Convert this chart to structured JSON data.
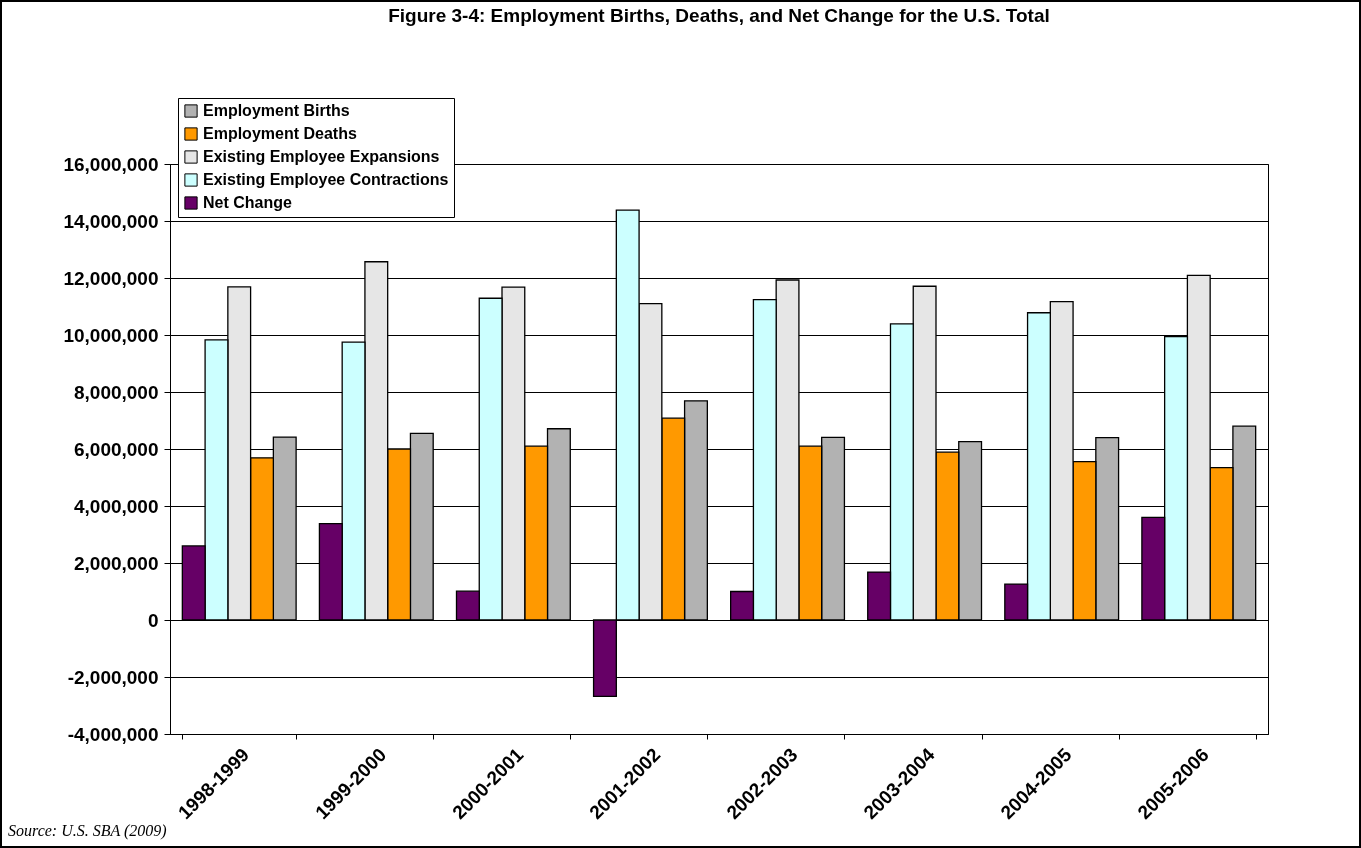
{
  "chart_data": {
    "type": "bar",
    "title": "Figure 3-4: Employment Births, Deaths, and Net Change for the U.S. Total",
    "categories": [
      "1998-1999",
      "1999-2000",
      "2000-2001",
      "2001-2002",
      "2002-2003",
      "2003-2004",
      "2004-2005",
      "2005-2006"
    ],
    "series": [
      {
        "name": "Employment Births",
        "color": "#b2b2b2",
        "values": [
          6420000,
          6550000,
          6710000,
          7690000,
          6410000,
          6260000,
          6400000,
          6800000
        ]
      },
      {
        "name": "Employment Deaths",
        "color": "#ff9900",
        "values": [
          5690000,
          6000000,
          6100000,
          7080000,
          6100000,
          5890000,
          5560000,
          5350000
        ]
      },
      {
        "name": "Existing Employee Expansions",
        "color": "#e6e6e6",
        "values": [
          11690000,
          12570000,
          11680000,
          11100000,
          11930000,
          11710000,
          11170000,
          12090000
        ]
      },
      {
        "name": "Existing Employee Contractions",
        "color": "#ccffff",
        "values": [
          9830000,
          9750000,
          11290000,
          14380000,
          11240000,
          10390000,
          10780000,
          9940000
        ]
      },
      {
        "name": "Net Change",
        "color": "#660066",
        "values": [
          2600000,
          3380000,
          1010000,
          -2680000,
          1000000,
          1680000,
          1260000,
          3600000
        ]
      }
    ],
    "ylim": [
      -4000000,
      16000000
    ],
    "yticks": [
      {
        "value": -4000000,
        "label": "-4,000,000"
      },
      {
        "value": -2000000,
        "label": "-2,000,000"
      },
      0,
      {
        "value": 2000000,
        "label": "2,000,000"
      },
      {
        "value": 4000000,
        "label": "4,000,000"
      },
      {
        "value": 6000000,
        "label": "6,000,000"
      },
      {
        "value": 8000000,
        "label": "8,000,000"
      },
      {
        "value": 10000000,
        "label": "10,000,000"
      },
      {
        "value": 12000000,
        "label": "12,000,000"
      },
      {
        "value": 14000000,
        "label": "14,000,000"
      },
      {
        "value": 16000000,
        "label": "16,000,000"
      }
    ],
    "grid": "y",
    "legend": "top left",
    "annotations": [
      "Source: U.S. SBA (2009)"
    ]
  }
}
